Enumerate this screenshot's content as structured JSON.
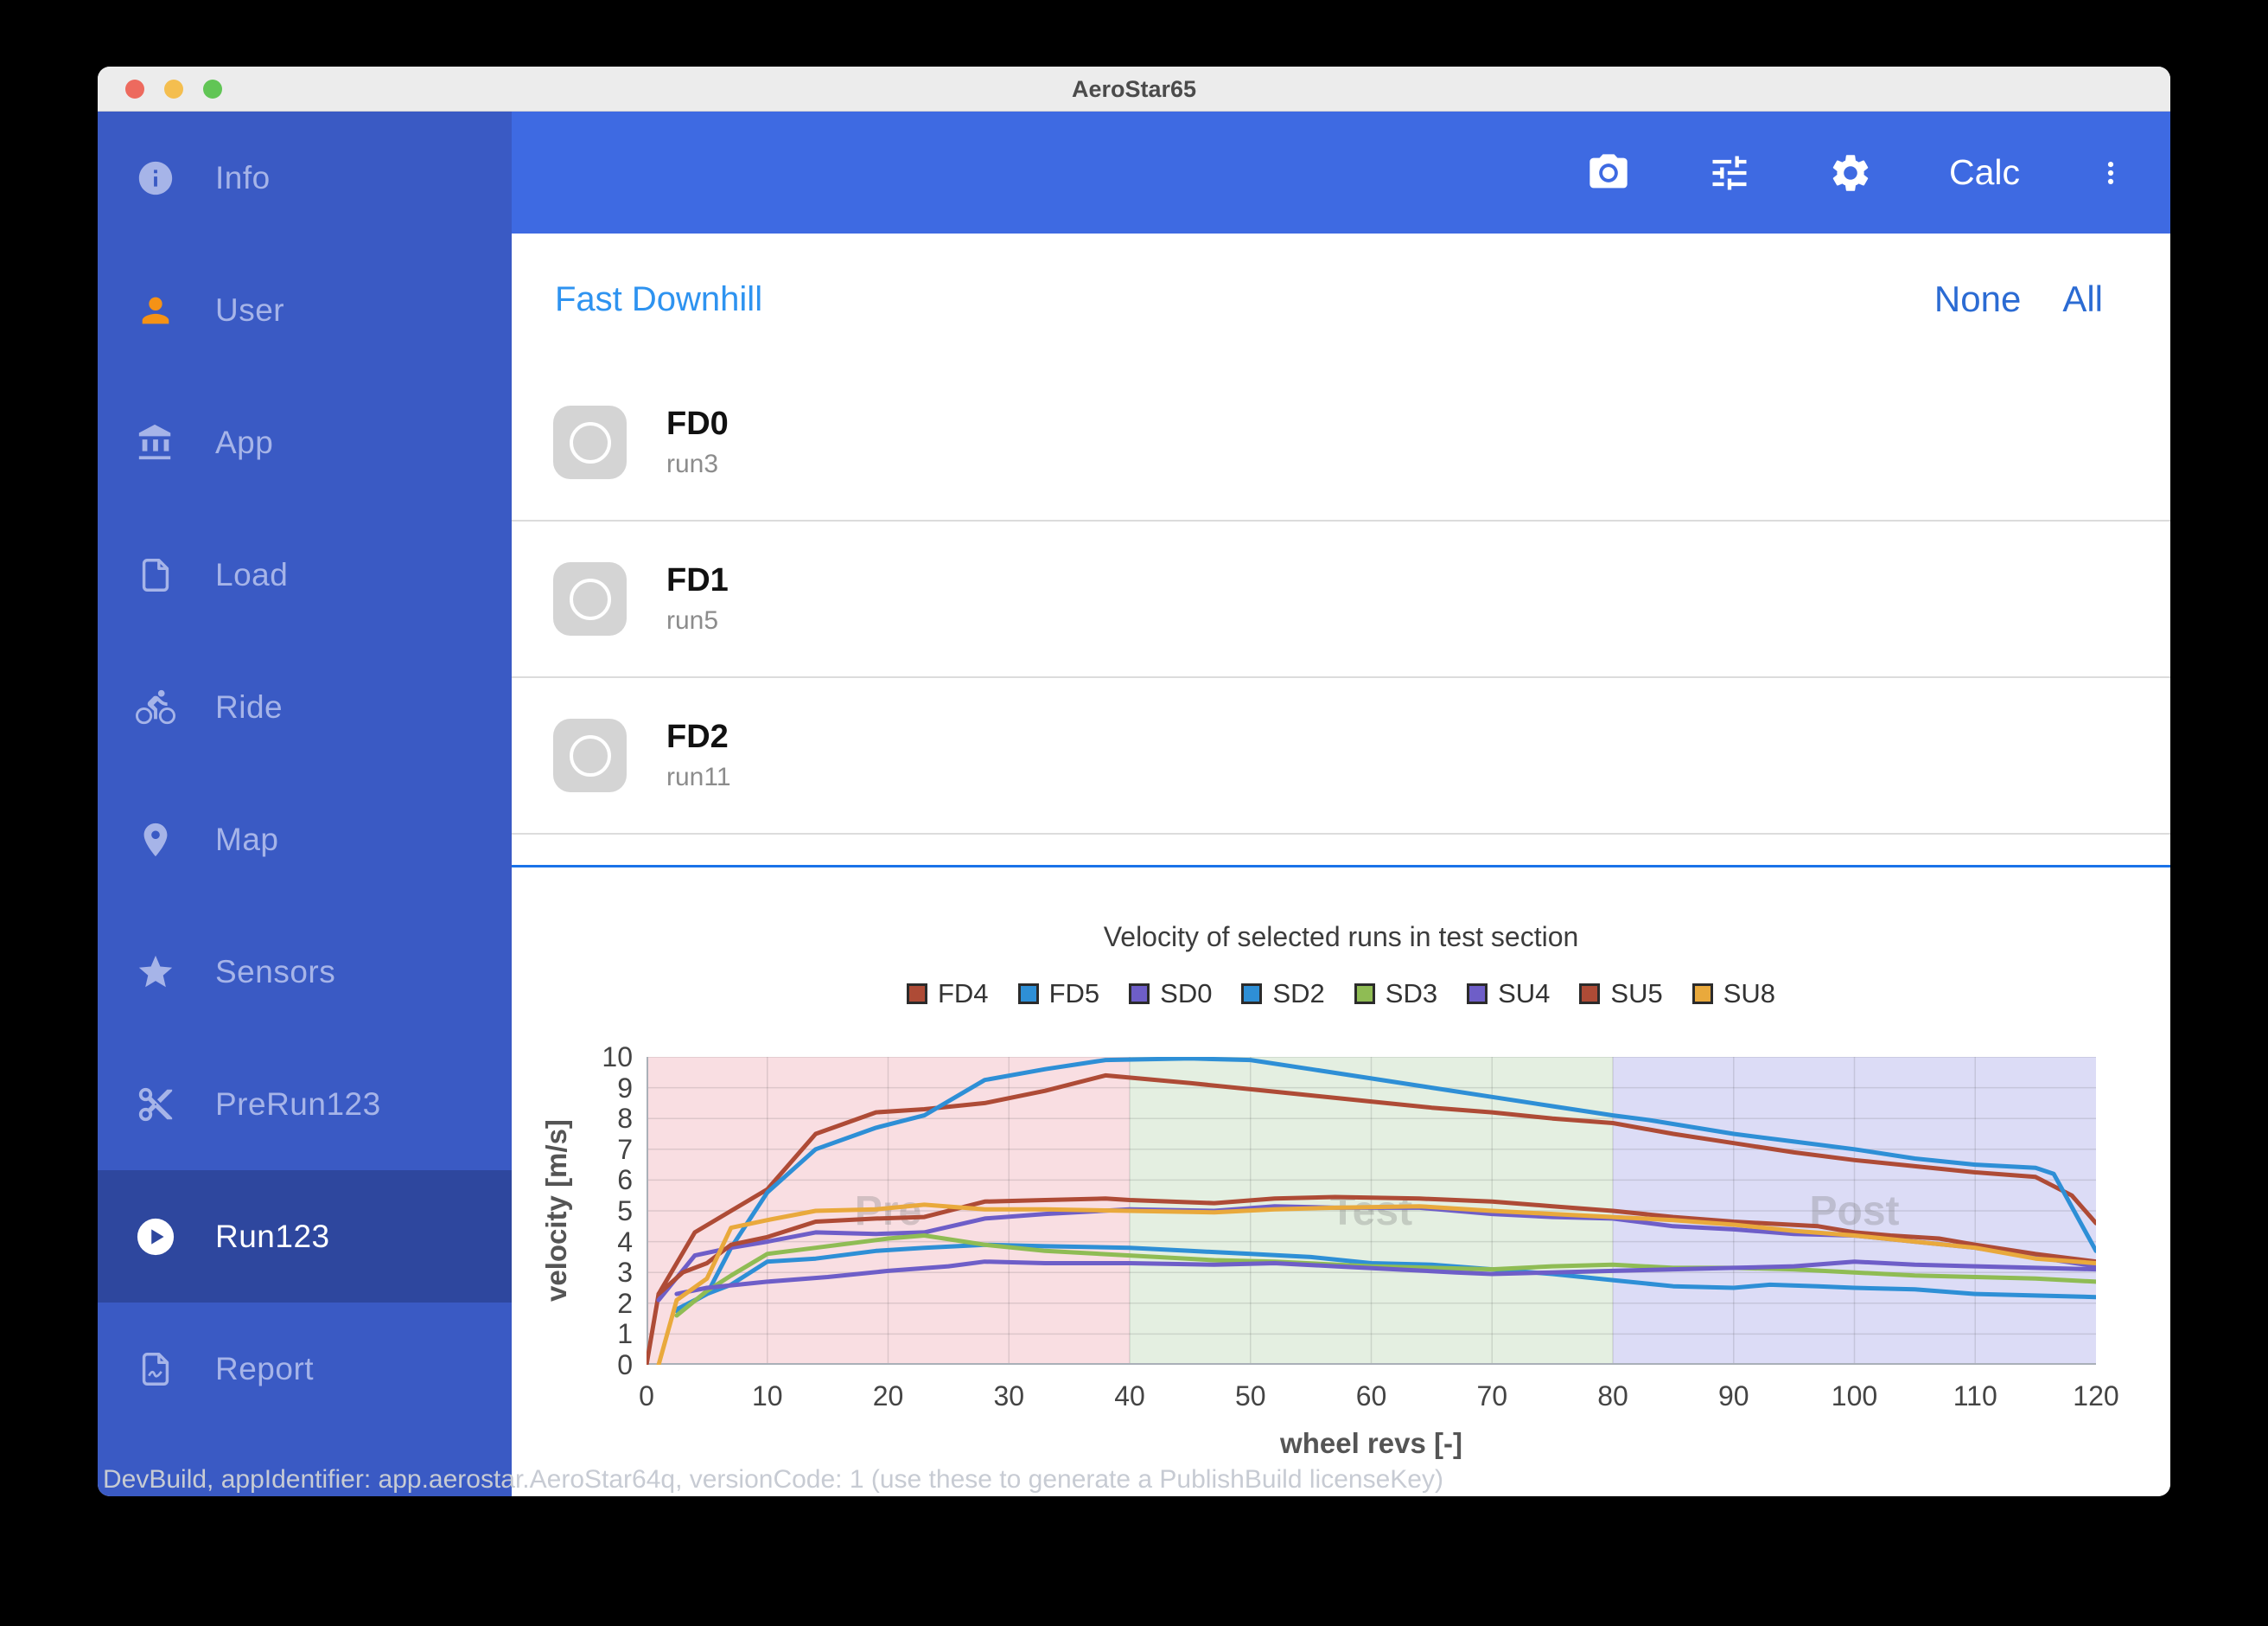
{
  "window": {
    "title": "AeroStar65"
  },
  "sidebar": {
    "items": [
      {
        "label": "Info",
        "icon": "info-icon"
      },
      {
        "label": "User",
        "icon": "person-icon"
      },
      {
        "label": "App",
        "icon": "bank-icon"
      },
      {
        "label": "Load",
        "icon": "file-icon"
      },
      {
        "label": "Ride",
        "icon": "bicycle-icon"
      },
      {
        "label": "Map",
        "icon": "map-pin-icon"
      },
      {
        "label": "Sensors",
        "icon": "star-icon"
      },
      {
        "label": "PreRun123",
        "icon": "scissors-icon"
      },
      {
        "label": "Run123",
        "icon": "play-circle-icon",
        "selected": true
      },
      {
        "label": "Report",
        "icon": "pdf-file-icon"
      }
    ]
  },
  "toolbar": {
    "calc_label": "Calc"
  },
  "content": {
    "section_title": "Fast Downhill",
    "select_none_label": "None",
    "select_all_label": "All",
    "runs": [
      {
        "title": "FD0",
        "subtitle": "run3",
        "checked": false
      },
      {
        "title": "FD1",
        "subtitle": "run5",
        "checked": false
      },
      {
        "title": "FD2",
        "subtitle": "run11",
        "checked": false
      }
    ]
  },
  "footer": {
    "text": "DevBuild, appIdentifier: app.aerostar.AeroStar64q, versionCode: 1 (use these to generate a PublishBuild licenseKey)"
  },
  "colors": {
    "sidebar": "#3a5ac4",
    "sidebar_selected": "#2e479e",
    "toolbar": "#3e6ae2",
    "accent_link": "#2e93f0",
    "action_blue": "#2b6bd3",
    "divider_blue": "#1a73e8"
  },
  "chart_data": {
    "type": "line",
    "title": "Velocity of selected runs in test section",
    "xlabel": "wheel revs [-]",
    "ylabel": "velocity [m/s]",
    "xlim": [
      0,
      120
    ],
    "ylim": [
      0,
      10
    ],
    "xticks": [
      0,
      10,
      20,
      30,
      40,
      50,
      60,
      70,
      80,
      90,
      100,
      110,
      120
    ],
    "yticks": [
      0,
      1,
      2,
      3,
      4,
      5,
      6,
      7,
      8,
      9,
      10
    ],
    "grid": true,
    "legend_position": "top",
    "regions": [
      {
        "label": "Pre",
        "from": 0,
        "to": 40,
        "color": "#f9dee2"
      },
      {
        "label": "Test",
        "from": 40,
        "to": 80,
        "color": "#e4efe1"
      },
      {
        "label": "Post",
        "from": 80,
        "to": 120,
        "color": "#dcdcf6"
      }
    ],
    "series": [
      {
        "name": "FD4",
        "color": "#ae4b36",
        "x": [
          0,
          1,
          4,
          7,
          10,
          14,
          19,
          23,
          28,
          33,
          38,
          45,
          50,
          55,
          60,
          65,
          70,
          75,
          80,
          85,
          90,
          95,
          100,
          105,
          110,
          115,
          118,
          120
        ],
        "y": [
          0,
          2.3,
          4.3,
          5.0,
          5.7,
          7.5,
          8.2,
          8.3,
          8.5,
          8.9,
          9.4,
          9.15,
          8.95,
          8.75,
          8.55,
          8.35,
          8.2,
          8.0,
          7.85,
          7.5,
          7.2,
          6.9,
          6.65,
          6.45,
          6.25,
          6.1,
          5.5,
          4.6
        ]
      },
      {
        "name": "FD5",
        "color": "#2e8fd6",
        "x": [
          2.5,
          5,
          7,
          10,
          14,
          19,
          23,
          28,
          33,
          38,
          45,
          50,
          55,
          60,
          65,
          70,
          75,
          80,
          83,
          90,
          95,
          100,
          105,
          110,
          115,
          116.5,
          120
        ],
        "y": [
          1.75,
          2.3,
          3.8,
          5.6,
          7.0,
          7.7,
          8.1,
          9.25,
          9.6,
          9.9,
          9.95,
          9.9,
          9.6,
          9.3,
          9.0,
          8.7,
          8.4,
          8.1,
          7.95,
          7.5,
          7.25,
          7.0,
          6.7,
          6.5,
          6.4,
          6.2,
          3.7
        ]
      },
      {
        "name": "SD0",
        "color": "#6e5ec8",
        "x": [
          1,
          4,
          7,
          10,
          14,
          19,
          23,
          28,
          33,
          40,
          47,
          52,
          57,
          64,
          70,
          75,
          80,
          85,
          90,
          95,
          100,
          105,
          110,
          115,
          120
        ],
        "y": [
          2.1,
          3.55,
          3.8,
          4.0,
          4.3,
          4.25,
          4.3,
          4.75,
          4.9,
          5.05,
          5.0,
          5.15,
          5.1,
          5.1,
          4.9,
          4.8,
          4.75,
          4.5,
          4.4,
          4.25,
          4.2,
          4.0,
          3.8,
          3.5,
          3.2
        ]
      },
      {
        "name": "SD2",
        "color": "#2e8fd6",
        "x": [
          2.5,
          5,
          7,
          10,
          14,
          19,
          23,
          28,
          33,
          40,
          45,
          50,
          55,
          60,
          65,
          70,
          75,
          80,
          85,
          90,
          93,
          97,
          100,
          105,
          110,
          115,
          120
        ],
        "y": [
          1.8,
          2.3,
          2.6,
          3.35,
          3.45,
          3.7,
          3.8,
          3.9,
          3.85,
          3.8,
          3.7,
          3.6,
          3.5,
          3.3,
          3.25,
          3.1,
          2.95,
          2.75,
          2.55,
          2.5,
          2.6,
          2.55,
          2.5,
          2.45,
          2.3,
          2.25,
          2.2
        ]
      },
      {
        "name": "SD3",
        "color": "#8fbc54",
        "x": [
          2.5,
          5,
          7,
          10,
          14,
          20,
          23,
          28,
          33,
          40,
          47,
          52,
          60,
          65,
          70,
          75,
          80,
          85,
          90,
          95,
          100,
          105,
          110,
          115,
          120
        ],
        "y": [
          1.6,
          2.4,
          2.9,
          3.6,
          3.8,
          4.1,
          4.2,
          3.9,
          3.7,
          3.55,
          3.4,
          3.35,
          3.2,
          3.15,
          3.1,
          3.2,
          3.25,
          3.15,
          3.15,
          3.1,
          3.0,
          2.9,
          2.85,
          2.8,
          2.7
        ]
      },
      {
        "name": "SU4",
        "color": "#6e5ec8",
        "x": [
          2.5,
          5,
          10,
          15,
          20,
          25,
          28,
          33,
          40,
          47,
          52,
          57,
          62,
          67,
          70,
          75,
          80,
          85,
          90,
          95,
          100,
          105,
          110,
          115,
          120
        ],
        "y": [
          2.3,
          2.5,
          2.7,
          2.85,
          3.05,
          3.2,
          3.35,
          3.3,
          3.3,
          3.25,
          3.3,
          3.2,
          3.1,
          3.0,
          2.95,
          3.0,
          3.05,
          3.1,
          3.15,
          3.2,
          3.35,
          3.25,
          3.2,
          3.15,
          3.1
        ]
      },
      {
        "name": "SU5",
        "color": "#ae4b36",
        "x": [
          1,
          3,
          5,
          7,
          10,
          14,
          19,
          23,
          28,
          33,
          38,
          40,
          47,
          52,
          57,
          64,
          70,
          75,
          80,
          85,
          90,
          97,
          100,
          103,
          107,
          110,
          115,
          120
        ],
        "y": [
          2.3,
          3.0,
          3.3,
          3.9,
          4.15,
          4.65,
          4.75,
          4.8,
          5.3,
          5.35,
          5.4,
          5.35,
          5.25,
          5.4,
          5.45,
          5.4,
          5.3,
          5.15,
          5.0,
          4.8,
          4.65,
          4.5,
          4.3,
          4.2,
          4.1,
          3.9,
          3.6,
          3.35
        ]
      },
      {
        "name": "SU8",
        "color": "#e9a93c",
        "x": [
          1,
          2.5,
          5,
          7,
          10,
          14,
          19,
          23,
          28,
          33,
          40,
          47,
          52,
          57,
          64,
          70,
          75,
          80,
          85,
          90,
          95,
          100,
          105,
          110,
          115,
          120
        ],
        "y": [
          0,
          2.1,
          2.8,
          4.45,
          4.7,
          5.0,
          5.05,
          5.2,
          5.05,
          5.05,
          5.0,
          4.95,
          5.05,
          5.1,
          5.15,
          5.0,
          4.9,
          4.8,
          4.7,
          4.55,
          4.35,
          4.2,
          4.0,
          3.8,
          3.45,
          3.3
        ]
      }
    ]
  }
}
